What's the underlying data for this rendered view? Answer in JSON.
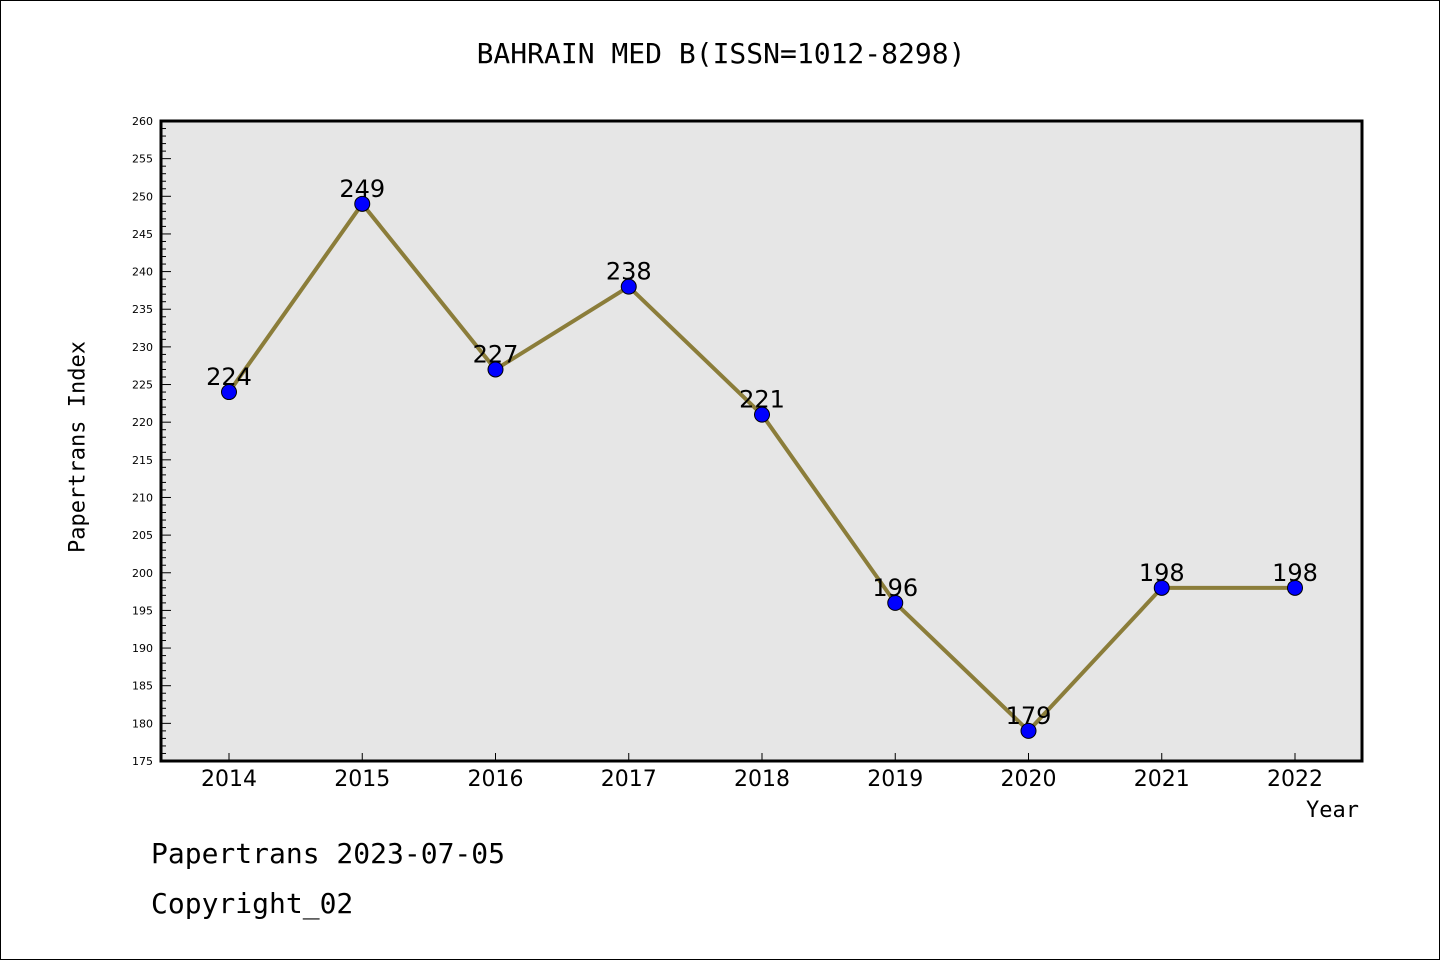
{
  "chart_data": {
    "type": "line",
    "title": "BAHRAIN MED B(ISSN=1012-8298)",
    "xlabel": "Year",
    "ylabel": "Papertrans Index",
    "x": [
      "2014",
      "2015",
      "2016",
      "2017",
      "2018",
      "2019",
      "2020",
      "2021",
      "2022"
    ],
    "series": [
      {
        "values": [
          224,
          249,
          227,
          238,
          221,
          196,
          179,
          198,
          198
        ]
      }
    ],
    "ylim": [
      175,
      260
    ],
    "ytick_step": 5,
    "grid": false,
    "colors": {
      "plot_background": "#e6e6e6",
      "line": "#8b7d3a",
      "marker": "#0000ff"
    }
  },
  "footer": {
    "date_text": "Papertrans 2023-07-05",
    "copyright_text": "Copyright_02"
  }
}
